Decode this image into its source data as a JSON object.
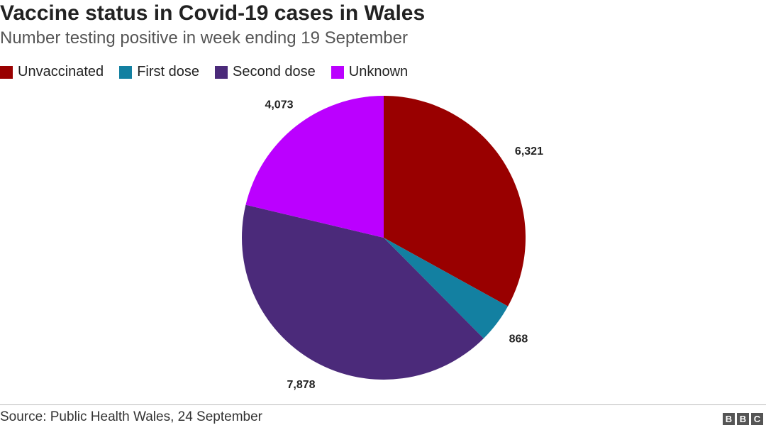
{
  "header": {
    "title": "Vaccine status in Covid-19 cases in Wales",
    "subtitle": "Number testing positive in week ending 19 September"
  },
  "legend": {
    "placement": "top-left",
    "items": [
      {
        "label": "Unvaccinated",
        "color": "#990000"
      },
      {
        "label": "First dose",
        "color": "#1380a1"
      },
      {
        "label": "Second dose",
        "color": "#4b2a7a"
      },
      {
        "label": "Unknown",
        "color": "#bb00ff"
      }
    ]
  },
  "chart_data": {
    "type": "pie",
    "title": "Vaccine status in Covid-19 cases in Wales",
    "subtitle": "Number testing positive in week ending 19 September",
    "start": "12 o'clock",
    "direction": "clockwise",
    "slices": [
      {
        "label": "Unvaccinated",
        "value": 6321,
        "display": "6,321",
        "color": "#990000"
      },
      {
        "label": "First dose",
        "value": 868,
        "display": "868",
        "color": "#1380a1"
      },
      {
        "label": "Second dose",
        "value": 7878,
        "display": "7,878",
        "color": "#4b2a7a"
      },
      {
        "label": "Unknown",
        "value": 4073,
        "display": "4,073",
        "color": "#bb00ff"
      }
    ]
  },
  "footer": {
    "source": "Source: Public Health Wales, 24 September",
    "logo": [
      "B",
      "B",
      "C"
    ]
  }
}
